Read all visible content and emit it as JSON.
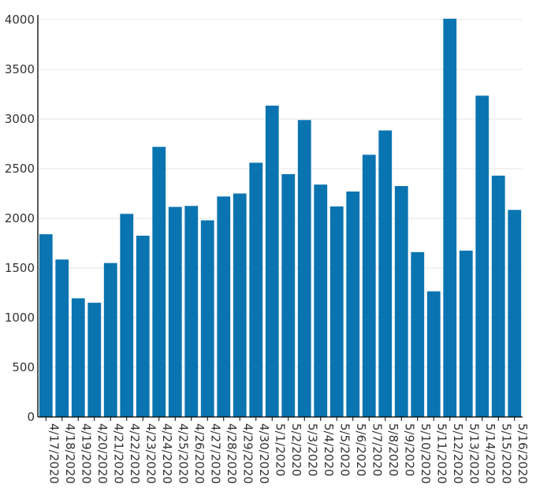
{
  "chart_data": {
    "type": "bar",
    "categories": [
      "4/17/2020",
      "4/18/2020",
      "4/19/2020",
      "4/20/2020",
      "4/21/2020",
      "4/22/2020",
      "4/23/2020",
      "4/24/2020",
      "4/25/2020",
      "4/26/2020",
      "4/27/2020",
      "4/28/2020",
      "4/29/2020",
      "4/30/2020",
      "5/1/2020",
      "5/2/2020",
      "5/3/2020",
      "5/4/2020",
      "5/5/2020",
      "5/6/2020",
      "5/7/2020",
      "5/8/2020",
      "5/9/2020",
      "5/10/2020",
      "5/11/2020",
      "5/12/2020",
      "5/13/2020",
      "5/14/2020",
      "5/15/2020",
      "5/16/2020"
    ],
    "values": [
      1840,
      1585,
      1195,
      1150,
      1550,
      2045,
      1825,
      2720,
      2115,
      2125,
      1980,
      2220,
      2250,
      2560,
      3135,
      2445,
      2990,
      2340,
      2120,
      2270,
      2640,
      2885,
      2325,
      1660,
      1265,
      4010,
      1675,
      3235,
      2430,
      2085
    ],
    "yticks": [
      0,
      500,
      1000,
      1500,
      2000,
      2500,
      3000,
      3500,
      4000
    ],
    "ylim": [
      0,
      4000
    ],
    "bar_color": "#0a74b1",
    "grid": true,
    "title": "",
    "xlabel": "",
    "ylabel": ""
  }
}
